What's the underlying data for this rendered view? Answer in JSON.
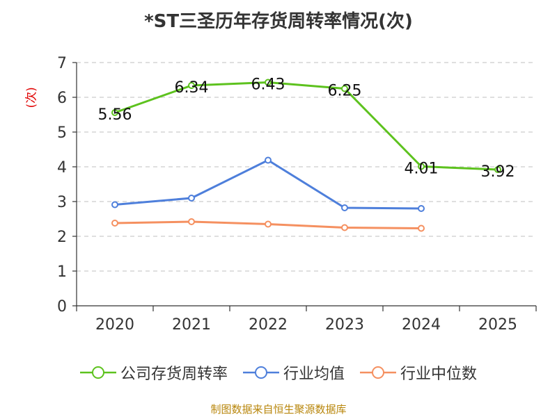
{
  "title": "*ST三圣历年存货周转率情况(次)",
  "source": "制图数据来自恒生聚源数据库",
  "chart_data": {
    "type": "line",
    "title": "*ST三圣历年存货周转率情况(次)",
    "ylabel": "(次)",
    "xlabel": "",
    "categories": [
      "2020",
      "2021",
      "2022",
      "2023",
      "2024",
      "2025"
    ],
    "ylim": [
      0,
      7
    ],
    "yticks": [
      0,
      1,
      2,
      3,
      4,
      5,
      6,
      7
    ],
    "grid": true,
    "legend_position": "bottom",
    "series": [
      {
        "name": "公司存货周转率",
        "color": "#5dc21e",
        "values": [
          5.56,
          6.34,
          6.43,
          6.25,
          4.01,
          3.92
        ],
        "labels": [
          "5.56",
          "6.34",
          "6.43",
          "6.25",
          "4.01",
          "3.92"
        ]
      },
      {
        "name": "行业均值",
        "color": "#4e7fdb",
        "values": [
          2.91,
          3.1,
          4.19,
          2.82,
          2.8,
          null
        ],
        "labels": null
      },
      {
        "name": "行业中位数",
        "color": "#f59060",
        "values": [
          2.38,
          2.42,
          2.35,
          2.25,
          2.23,
          null
        ],
        "labels": null
      }
    ]
  }
}
